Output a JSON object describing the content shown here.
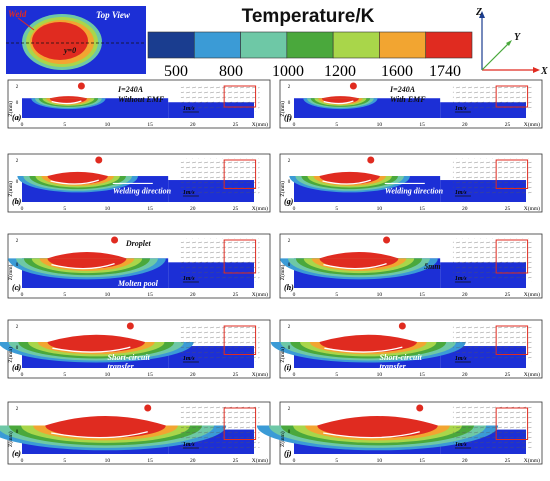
{
  "top_view": {
    "label": "Top View",
    "weld_label": "Weld",
    "axis_marker": "y=0"
  },
  "colorbar": {
    "title": "Temperature/K",
    "ticks": [
      "500",
      "800",
      "1000",
      "1200",
      "1600",
      "1740"
    ],
    "colors": [
      "#1a3d8f",
      "#3b9bd6",
      "#6ec8a6",
      "#4aa83c",
      "#a9d64a",
      "#f2a531",
      "#e02b20"
    ]
  },
  "axes_triad": {
    "z": "Z",
    "y": "Y",
    "x": "X"
  },
  "common": {
    "z_axis": "Z(mm)",
    "x_axis": "X(mm)",
    "x_ticks": [
      "0",
      "5",
      "10",
      "15",
      "20",
      "25"
    ],
    "z_ticks": [
      "2",
      "0",
      "-2"
    ],
    "scale": "1m/s"
  },
  "panels": [
    {
      "id": "(a)",
      "notes": [
        "I=240A",
        "Without EMF"
      ]
    },
    {
      "id": "(b)",
      "notes": [
        "Welding direction"
      ]
    },
    {
      "id": "(c)",
      "notes": [
        "Droplet",
        "Molten pool"
      ]
    },
    {
      "id": "(d)",
      "notes": [
        "Short-circuit",
        "transfer"
      ]
    },
    {
      "id": "(e)",
      "notes": []
    },
    {
      "id": "(f)",
      "notes": [
        "I=240A",
        "With EMF"
      ]
    },
    {
      "id": "(g)",
      "notes": [
        "Welding direction"
      ]
    },
    {
      "id": "(h)",
      "notes": [
        "5mm"
      ]
    },
    {
      "id": "(i)",
      "notes": [
        "Short-circuit",
        "transfer"
      ]
    },
    {
      "id": "(j)",
      "notes": []
    }
  ]
}
